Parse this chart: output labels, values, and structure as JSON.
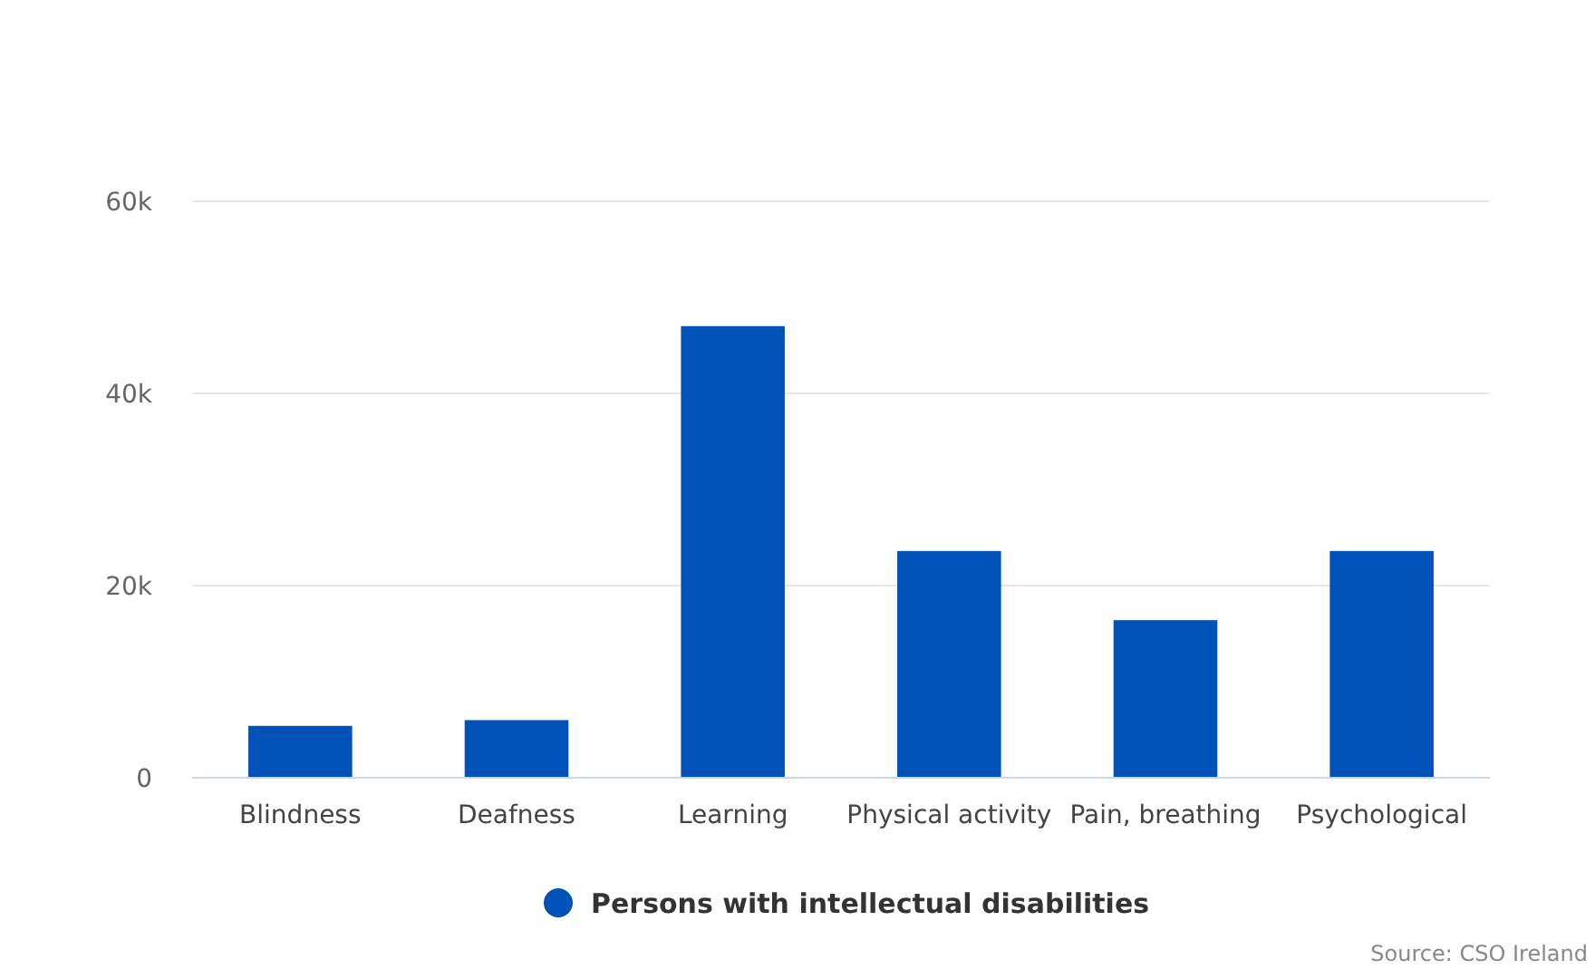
{
  "chart_data": {
    "type": "bar",
    "categories": [
      "Blindness",
      "Deafness",
      "Learning",
      "Physical activity",
      "Pain, breathing",
      "Psychological"
    ],
    "series": [
      {
        "name": "Persons with intellectual disabilities",
        "color": "#0052b8",
        "values": [
          5400,
          6000,
          47000,
          23600,
          16400,
          23600
        ]
      }
    ],
    "ylim": [
      0,
      60000
    ],
    "yticks": [
      0,
      {
        "value": 20000,
        "label": "20k"
      },
      {
        "value": 40000,
        "label": "40k"
      },
      {
        "value": 60000,
        "label": "60k"
      }
    ],
    "grid": "y",
    "legend": "bottom",
    "annotations": [
      "Source: CSO Ireland"
    ]
  }
}
